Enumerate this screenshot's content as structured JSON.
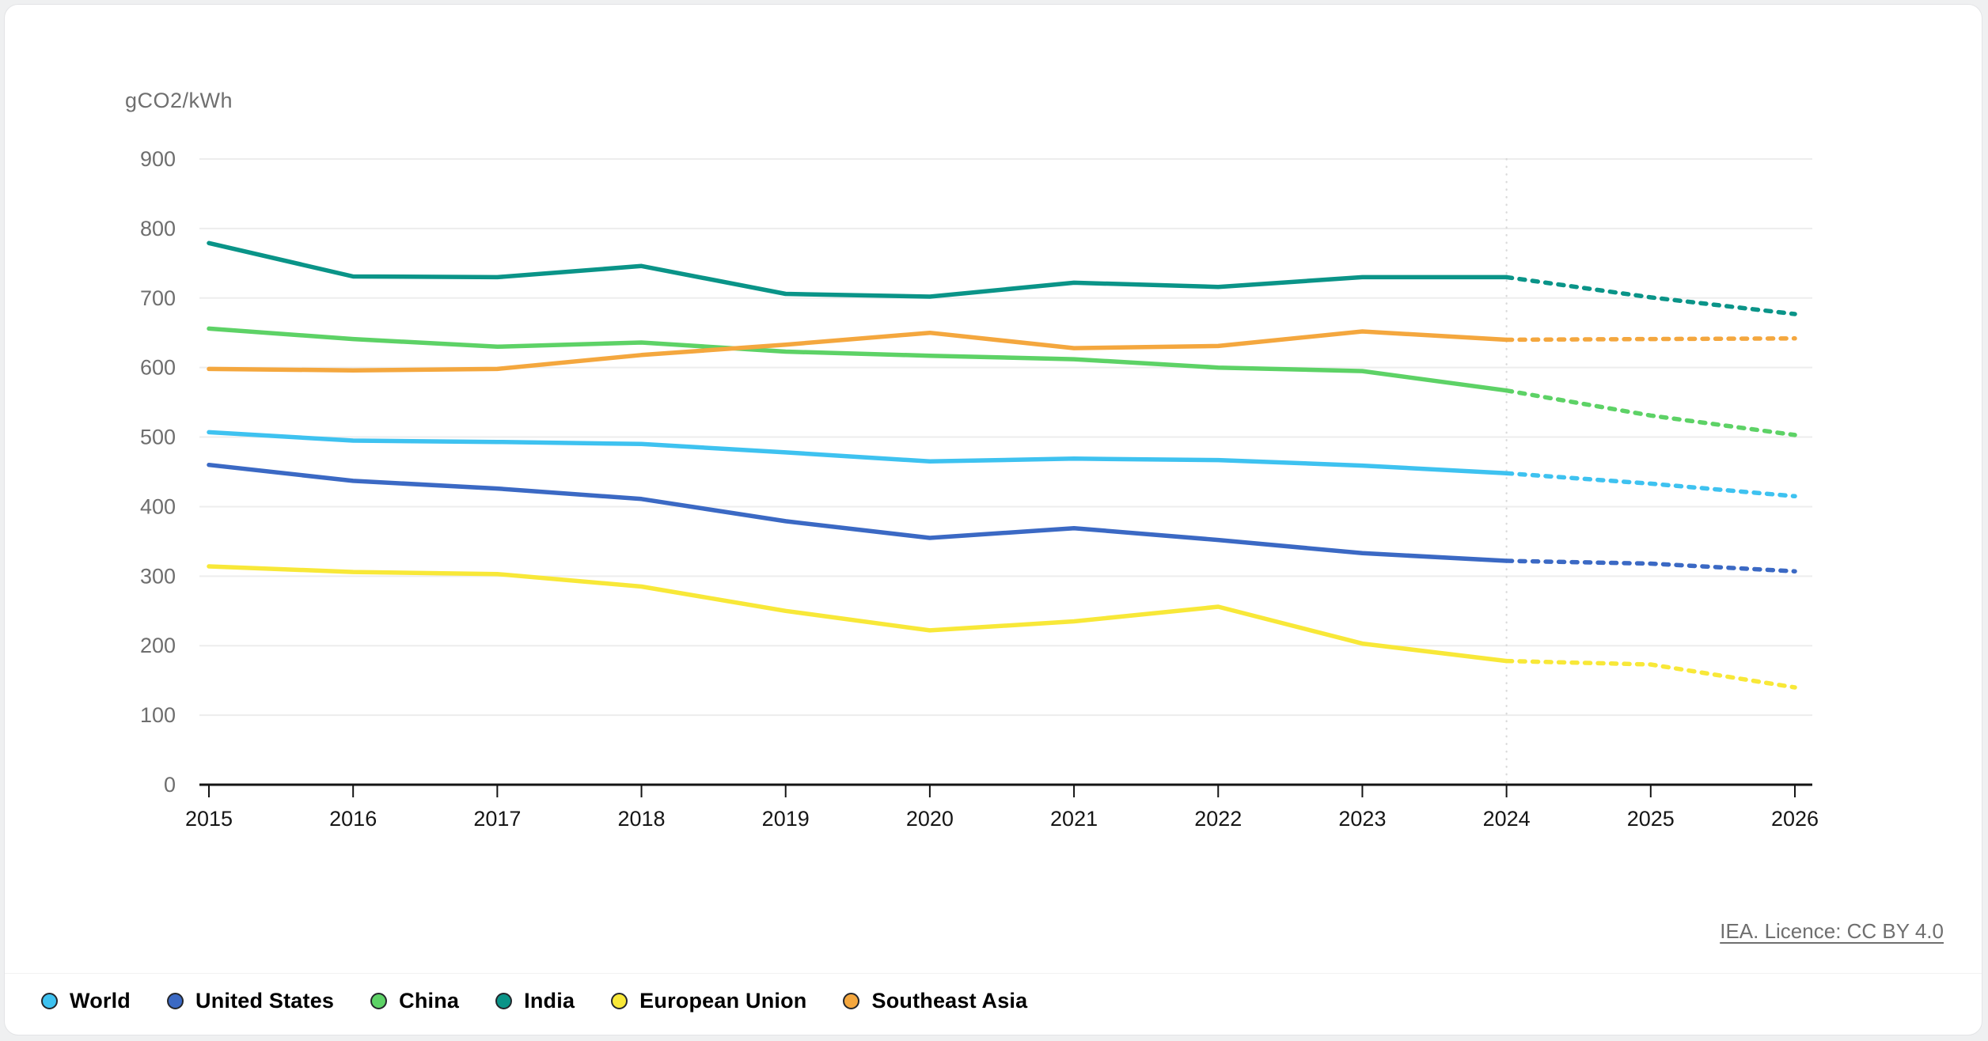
{
  "page": {
    "background_color": "#eff0f1",
    "card_background_color": "#ffffff"
  },
  "chart_data": {
    "type": "line",
    "title": "",
    "unit_label": "gCO2/kWh",
    "x": [
      2015,
      2016,
      2017,
      2018,
      2019,
      2020,
      2021,
      2022,
      2023,
      2024,
      2025,
      2026
    ],
    "ylim": [
      0,
      900
    ],
    "y_ticks": [
      0,
      100,
      200,
      300,
      400,
      500,
      600,
      700,
      800,
      900
    ],
    "grid": true,
    "forecast_start_year": 2024,
    "forecast_style": "dashed",
    "legend_position": "bottom-left",
    "axis_color": "#141414",
    "gridline_color": "#ededed",
    "tick_label_color": "#6e6e6e",
    "year_label_color": "#161616",
    "divider_color": "#d9d9d9",
    "series": [
      {
        "name": "World",
        "color": "#3ec2f0",
        "values": [
          507,
          495,
          493,
          490,
          478,
          465,
          469,
          467,
          459,
          448,
          433,
          415
        ]
      },
      {
        "name": "United States",
        "color": "#3b69c4",
        "values": [
          460,
          437,
          426,
          411,
          379,
          355,
          369,
          352,
          333,
          322,
          318,
          307
        ]
      },
      {
        "name": "China",
        "color": "#5dd266",
        "values": [
          656,
          641,
          630,
          636,
          623,
          617,
          612,
          600,
          595,
          567,
          531,
          503
        ]
      },
      {
        "name": "India",
        "color": "#0a9488",
        "values": [
          779,
          731,
          730,
          746,
          706,
          702,
          722,
          716,
          730,
          730,
          701,
          677
        ]
      },
      {
        "name": "European Union",
        "color": "#f8e838",
        "values": [
          314,
          306,
          303,
          285,
          250,
          222,
          235,
          256,
          203,
          178,
          173,
          140
        ]
      },
      {
        "name": "Southeast Asia",
        "color": "#f4a73e",
        "values": [
          598,
          596,
          598,
          618,
          633,
          650,
          628,
          631,
          652,
          640,
          641,
          642
        ]
      }
    ]
  },
  "attribution": {
    "text": "IEA. Licence: CC BY 4.0"
  }
}
